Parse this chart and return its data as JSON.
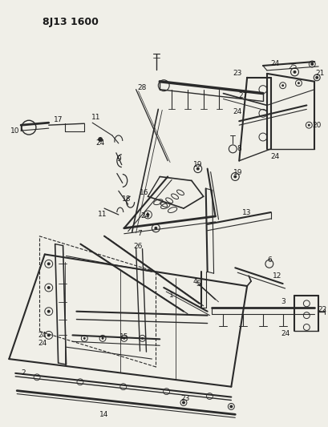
{
  "title": "8J13 1600",
  "bg_color": "#f0efe8",
  "line_color": "#2a2a2a",
  "text_color": "#1a1a1a",
  "fig_width": 4.09,
  "fig_height": 5.33,
  "dpi": 100
}
